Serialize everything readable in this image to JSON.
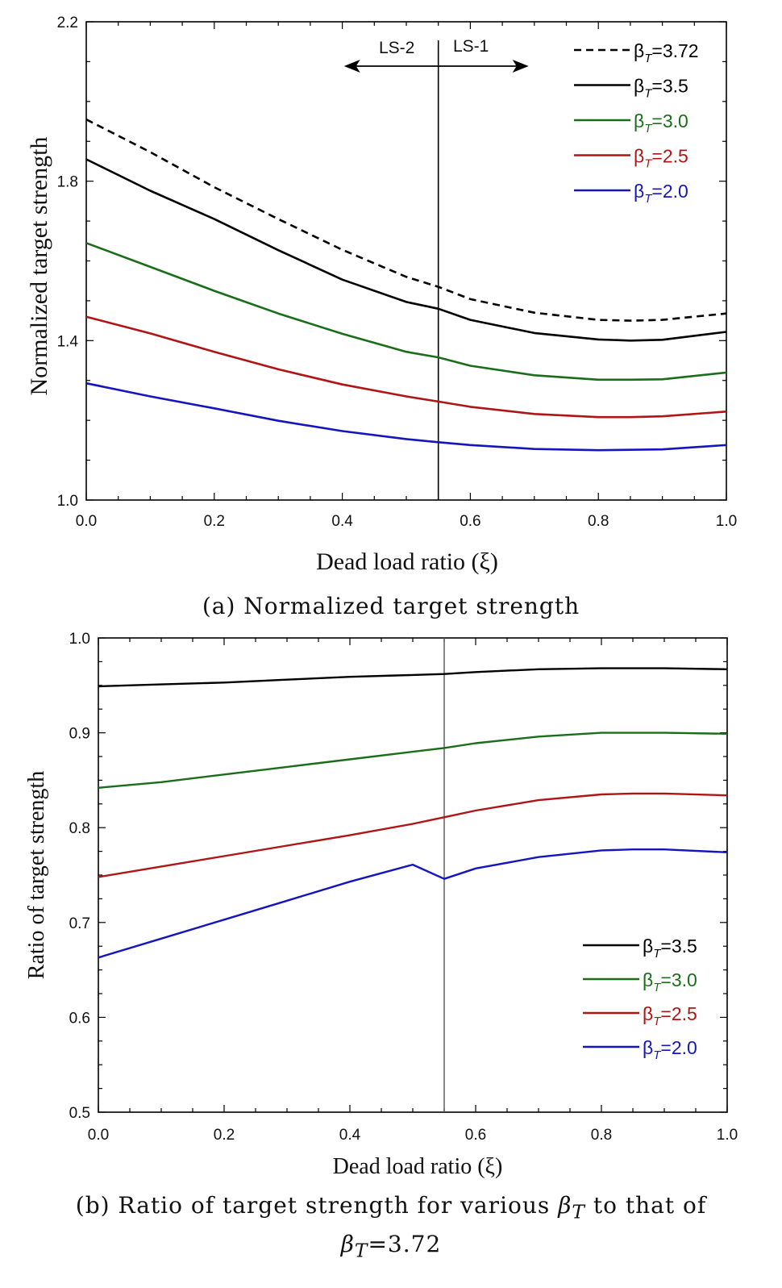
{
  "charts": [
    {
      "ylabel": "Normalized target strength",
      "xlabel": "Dead load ratio (ξ)",
      "yticks": [
        "1.0",
        "1.4",
        "1.8",
        "2.2"
      ],
      "xticks": [
        "0.0",
        "0.2",
        "0.4",
        "0.6",
        "0.8",
        "1.0"
      ],
      "annotations": {
        "left": "LS-2",
        "right": "LS-1"
      },
      "legend": [
        "β",
        "T",
        "=3.72",
        "=3.5",
        "=3.0",
        "=2.5",
        "=2.0"
      ],
      "caption": "(a) Normalized target strength"
    },
    {
      "ylabel": "Ratio of target strength",
      "xlabel": "Dead load ratio (ξ)",
      "yticks": [
        "0.5",
        "0.6",
        "0.7",
        "0.8",
        "0.9",
        "1.0"
      ],
      "xticks": [
        "0.0",
        "0.2",
        "0.4",
        "0.6",
        "0.8",
        "1.0"
      ],
      "caption_line1": "(b) Ratio of target strength for various ",
      "caption_to": " to that of",
      "caption_beta": "β",
      "caption_sub": "T",
      "caption_line2_val": "=3.72"
    }
  ],
  "colors": {
    "beta372": "#000000",
    "beta35": "#000000",
    "beta30": "#1a6e1a",
    "beta25": "#b01515",
    "beta20": "#1515c0"
  },
  "chart_data": [
    {
      "type": "line",
      "xlim": [
        0,
        1
      ],
      "ylim": [
        1.0,
        2.2
      ],
      "vline": 0.55,
      "legend_position": "top-right",
      "x": [
        0.0,
        0.1,
        0.2,
        0.3,
        0.4,
        0.5,
        0.55,
        0.6,
        0.7,
        0.8,
        0.85,
        0.9,
        1.0
      ],
      "series": [
        {
          "name": "βT=3.72",
          "style": "dashed",
          "values": [
            1.955,
            1.873,
            1.785,
            1.705,
            1.628,
            1.56,
            1.535,
            1.504,
            1.47,
            1.452,
            1.45,
            1.452,
            1.468
          ]
        },
        {
          "name": "βT=3.5",
          "values": [
            1.855,
            1.776,
            1.705,
            1.627,
            1.553,
            1.497,
            1.48,
            1.452,
            1.419,
            1.403,
            1.4,
            1.402,
            1.422
          ]
        },
        {
          "name": "βT=3.0",
          "values": [
            1.645,
            1.585,
            1.525,
            1.468,
            1.417,
            1.372,
            1.358,
            1.337,
            1.313,
            1.302,
            1.302,
            1.303,
            1.32
          ]
        },
        {
          "name": "βT=2.5",
          "values": [
            1.46,
            1.418,
            1.372,
            1.328,
            1.29,
            1.26,
            1.247,
            1.234,
            1.216,
            1.208,
            1.208,
            1.21,
            1.222
          ]
        },
        {
          "name": "βT=2.0",
          "values": [
            1.293,
            1.26,
            1.23,
            1.199,
            1.173,
            1.153,
            1.145,
            1.138,
            1.128,
            1.125,
            1.126,
            1.127,
            1.138
          ]
        }
      ]
    },
    {
      "type": "line",
      "xlim": [
        0,
        1
      ],
      "ylim": [
        0.5,
        1.0
      ],
      "vline": 0.55,
      "legend_position": "bottom-right",
      "x": [
        0.0,
        0.1,
        0.2,
        0.3,
        0.4,
        0.5,
        0.55,
        0.6,
        0.7,
        0.8,
        0.85,
        0.9,
        1.0
      ],
      "series": [
        {
          "name": "βT=3.5",
          "values": [
            0.949,
            0.951,
            0.953,
            0.956,
            0.959,
            0.961,
            0.962,
            0.964,
            0.967,
            0.968,
            0.968,
            0.968,
            0.967
          ]
        },
        {
          "name": "βT=3.0",
          "values": [
            0.842,
            0.848,
            0.856,
            0.864,
            0.872,
            0.88,
            0.884,
            0.889,
            0.896,
            0.9,
            0.9,
            0.9,
            0.899
          ]
        },
        {
          "name": "βT=2.5",
          "values": [
            0.748,
            0.759,
            0.77,
            0.781,
            0.792,
            0.804,
            0.811,
            0.818,
            0.829,
            0.835,
            0.836,
            0.836,
            0.834
          ]
        },
        {
          "name": "βT=2.0",
          "values": [
            0.663,
            0.683,
            0.703,
            0.723,
            0.743,
            0.761,
            0.746,
            0.757,
            0.769,
            0.776,
            0.777,
            0.777,
            0.774
          ]
        }
      ]
    }
  ]
}
